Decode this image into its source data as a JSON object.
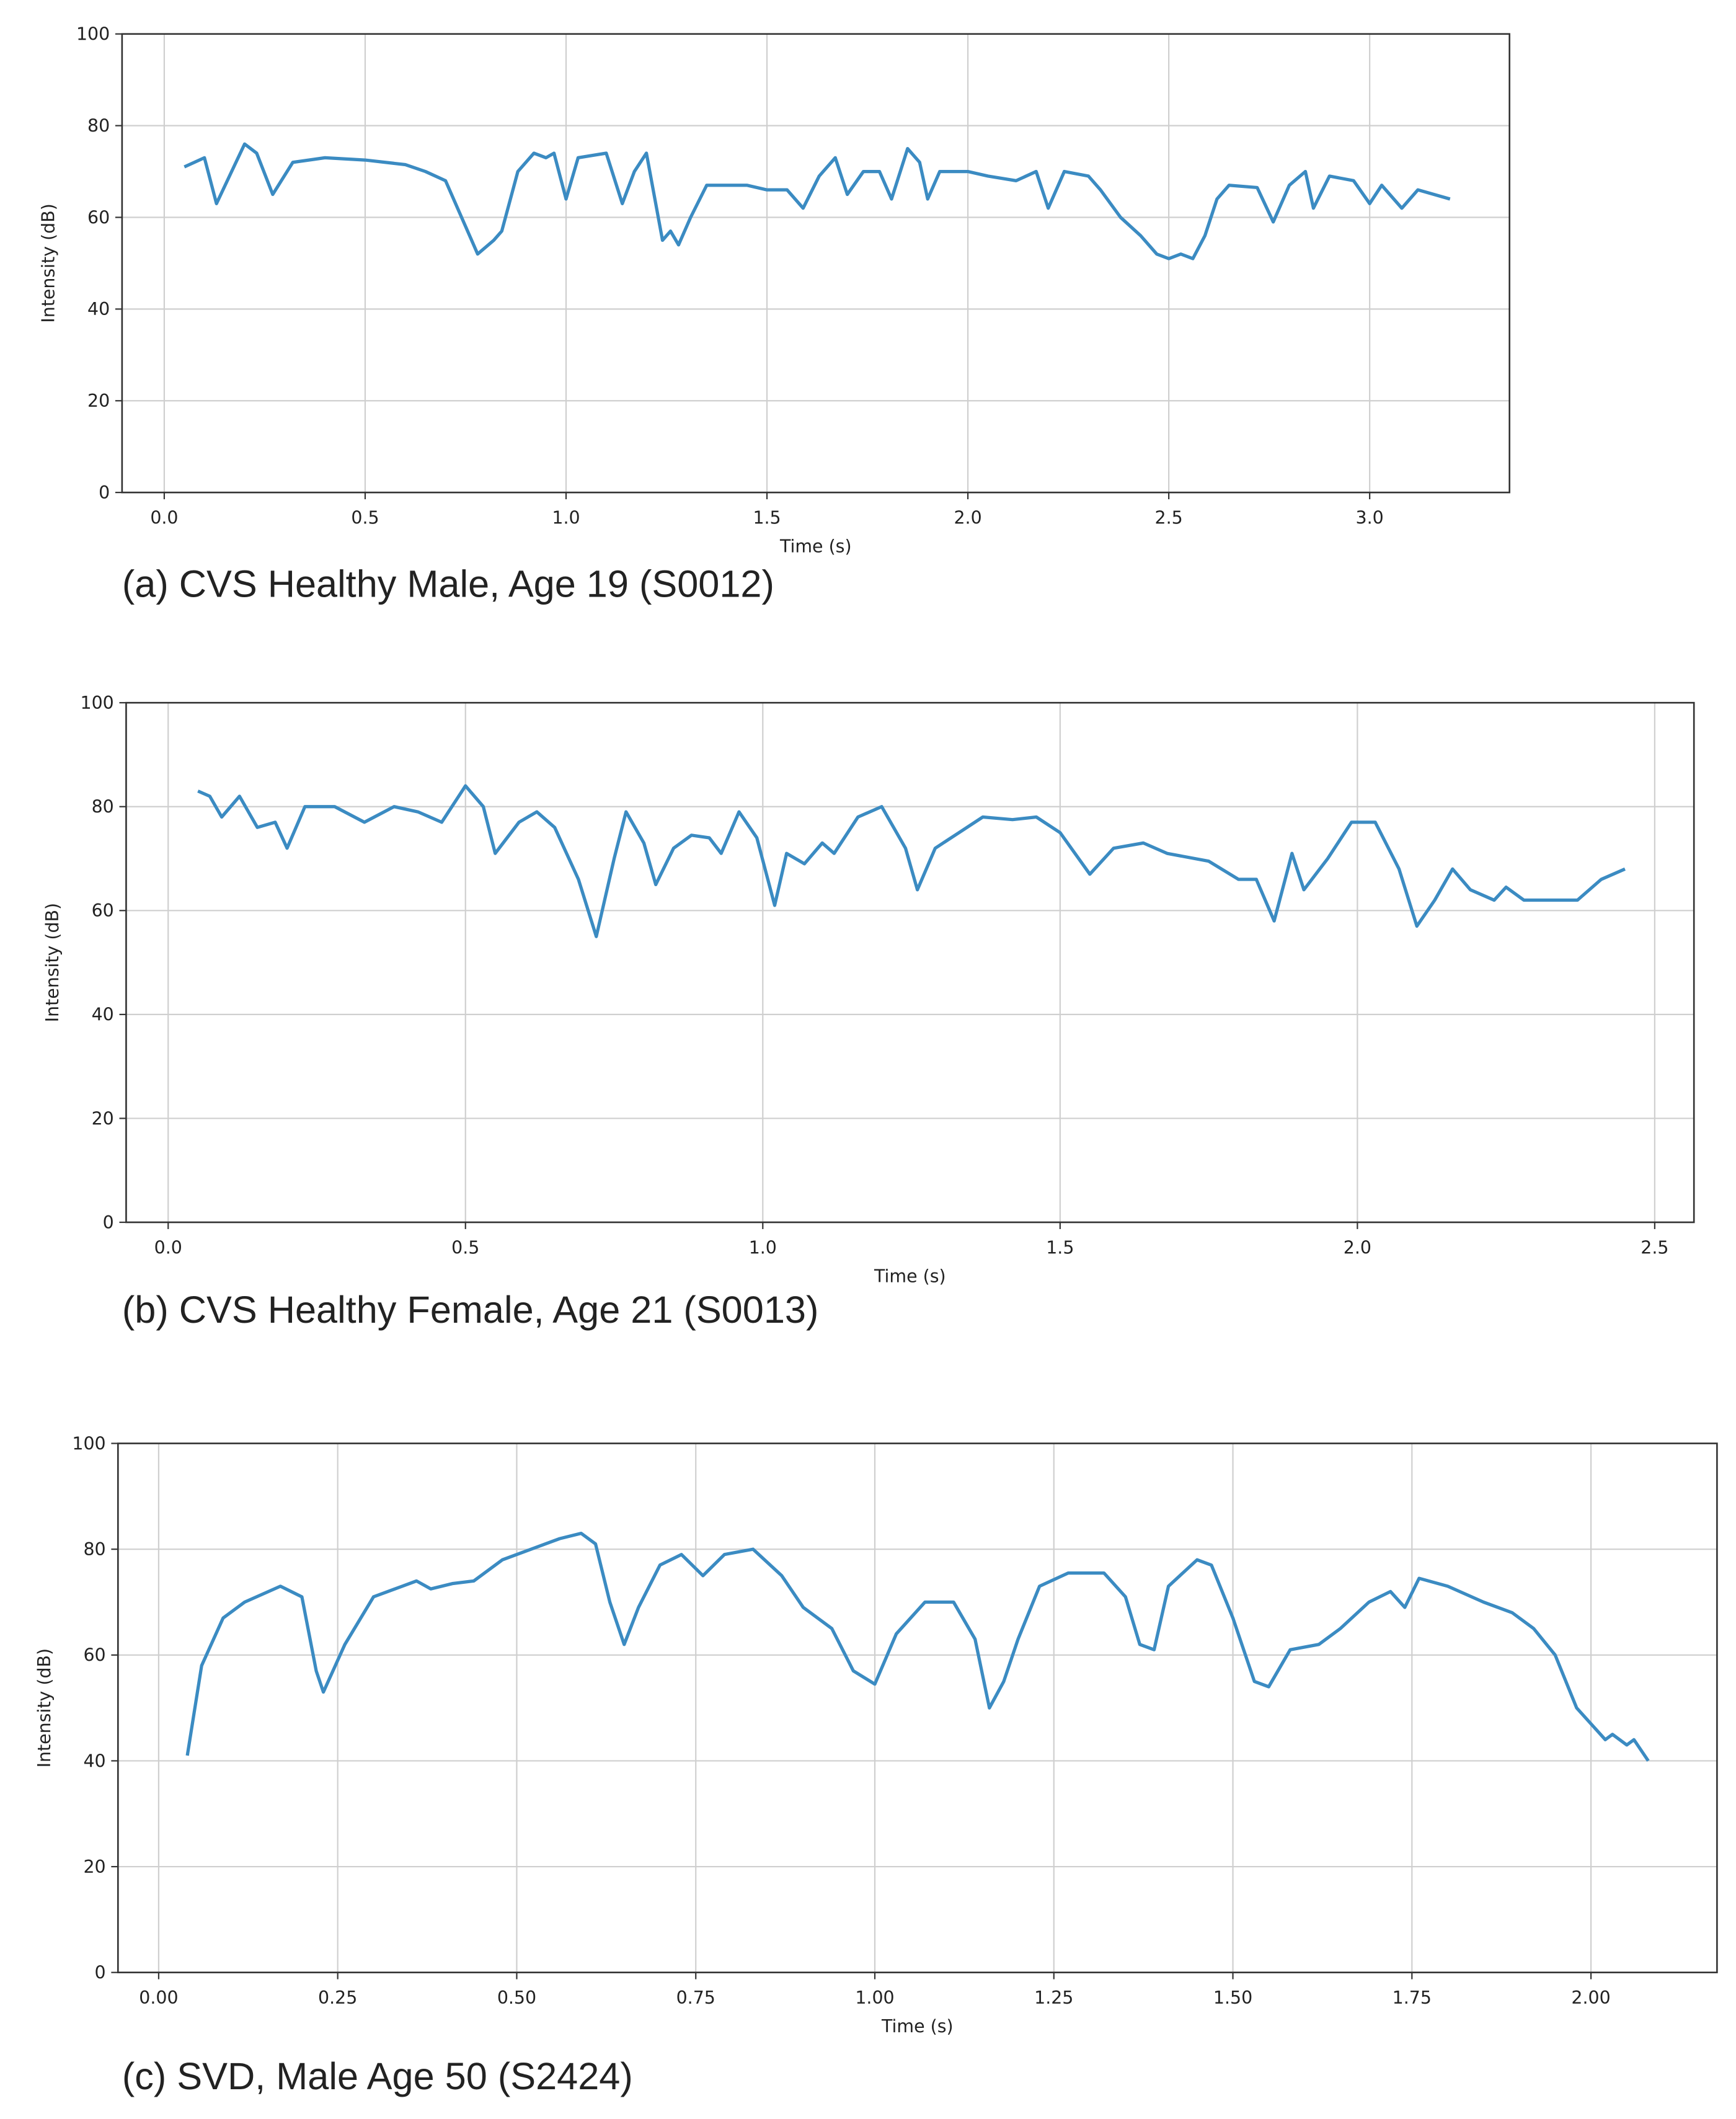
{
  "chart_data": [
    {
      "type": "line",
      "caption": "(a) CVS Healthy Male, Age 19 (S0012)",
      "xlabel": "Time (s)",
      "ylabel": "Intensity (dB)",
      "color": "#3b8bc2",
      "grid": true,
      "xlim": [
        -0.105,
        3.348
      ],
      "ylim": [
        0,
        100
      ],
      "xticks": [
        {
          "value": 0,
          "label": "0.0"
        },
        0.5,
        {
          "value": 1,
          "label": "1.0"
        },
        1.5,
        {
          "value": 2,
          "label": "2.0"
        },
        2.5,
        {
          "value": 3,
          "label": "3.0"
        }
      ],
      "yticks": [
        0,
        20,
        40,
        60,
        80,
        100
      ],
      "x": [
        0.05,
        0.1,
        0.13,
        0.2,
        0.23,
        0.27,
        0.32,
        0.4,
        0.5,
        0.6,
        0.65,
        0.7,
        0.75,
        0.78,
        0.82,
        0.84,
        0.88,
        0.92,
        0.95,
        0.97,
        1.0,
        1.03,
        1.1,
        1.14,
        1.17,
        1.2,
        1.24,
        1.26,
        1.28,
        1.31,
        1.35,
        1.45,
        1.5,
        1.55,
        1.59,
        1.63,
        1.67,
        1.7,
        1.74,
        1.78,
        1.81,
        1.85,
        1.88,
        1.9,
        1.93,
        2.0,
        2.05,
        2.12,
        2.17,
        2.2,
        2.24,
        2.3,
        2.33,
        2.38,
        2.43,
        2.47,
        2.5,
        2.53,
        2.56,
        2.59,
        2.62,
        2.65,
        2.72,
        2.76,
        2.8,
        2.84,
        2.86,
        2.9,
        2.96,
        3.0,
        3.03,
        3.08,
        3.12,
        3.2
      ],
      "values": [
        71,
        73,
        63,
        76,
        74,
        65,
        72,
        73,
        72.5,
        71.5,
        70,
        68,
        58,
        52,
        55,
        57,
        70,
        74,
        73,
        74,
        64,
        73,
        74,
        63,
        70,
        74,
        55,
        57,
        54,
        60,
        67,
        67,
        66,
        66,
        62,
        69,
        73,
        65,
        70,
        70,
        64,
        75,
        72,
        64,
        70,
        70,
        69,
        68,
        70,
        62,
        70,
        69,
        66,
        60,
        56,
        52,
        51,
        52,
        51,
        56,
        64,
        67,
        66.5,
        59,
        67,
        70,
        62,
        69,
        68,
        63,
        67,
        62,
        66,
        64
      ]
    },
    {
      "type": "line",
      "caption": "(b) CVS Healthy Female, Age 21 (S0013)",
      "xlabel": "Time (s)",
      "ylabel": "Intensity (dB)",
      "color": "#3b8bc2",
      "grid": true,
      "xlim": [
        -0.0707,
        2.566
      ],
      "ylim": [
        0,
        100
      ],
      "xticks": [
        {
          "value": 0,
          "label": "0.0"
        },
        0.5,
        {
          "value": 1,
          "label": "1.0"
        },
        1.5,
        {
          "value": 2,
          "label": "2.0"
        },
        2.5
      ],
      "yticks": [
        0,
        20,
        40,
        60,
        80,
        100
      ],
      "x": [
        0.05,
        0.07,
        0.09,
        0.12,
        0.15,
        0.18,
        0.2,
        0.23,
        0.28,
        0.33,
        0.38,
        0.42,
        0.46,
        0.5,
        0.53,
        0.55,
        0.59,
        0.62,
        0.65,
        0.69,
        0.72,
        0.75,
        0.77,
        0.8,
        0.82,
        0.85,
        0.88,
        0.91,
        0.93,
        0.96,
        0.99,
        1.02,
        1.04,
        1.07,
        1.1,
        1.12,
        1.16,
        1.2,
        1.24,
        1.26,
        1.29,
        1.33,
        1.37,
        1.42,
        1.46,
        1.5,
        1.55,
        1.59,
        1.64,
        1.68,
        1.75,
        1.8,
        1.83,
        1.86,
        1.89,
        1.91,
        1.95,
        1.99,
        2.03,
        2.07,
        2.1,
        2.13,
        2.16,
        2.19,
        2.23,
        2.25,
        2.28,
        2.33,
        2.37,
        2.41,
        2.45
      ],
      "values": [
        83,
        82,
        78,
        82,
        76,
        77,
        72,
        80,
        80,
        77,
        80,
        79,
        77,
        84,
        80,
        71,
        77,
        79,
        76,
        66,
        55,
        70,
        79,
        73,
        65,
        72,
        74.5,
        74,
        71,
        79,
        74,
        61,
        71,
        69,
        73,
        71,
        78,
        80,
        72,
        64,
        72,
        75,
        78,
        77.5,
        78,
        75,
        67,
        72,
        73,
        71,
        69.5,
        66,
        66,
        58,
        71,
        64,
        70,
        77,
        77,
        68,
        57,
        62,
        68,
        64,
        62,
        64.5,
        62,
        62,
        62,
        66,
        68
      ]
    },
    {
      "type": "line",
      "caption": "(c) SVD, Male Age 50 (S2424)",
      "xlabel": "Time (s)",
      "ylabel": "Intensity (dB)",
      "color": "#3b8bc2",
      "grid": true,
      "xlim": [
        -0.0568,
        2.176
      ],
      "ylim": [
        0,
        100
      ],
      "xticks": [
        {
          "value": 0,
          "label": "0.00"
        },
        0.25,
        {
          "value": 0.5,
          "label": "0.50"
        },
        0.75,
        {
          "value": 1,
          "label": "1.00"
        },
        1.25,
        {
          "value": 1.5,
          "label": "1.50"
        },
        1.75,
        {
          "value": 2,
          "label": "2.00"
        }
      ],
      "yticks": [
        0,
        20,
        40,
        60,
        80,
        100
      ],
      "x": [
        0.04,
        0.06,
        0.09,
        0.12,
        0.17,
        0.2,
        0.22,
        0.23,
        0.26,
        0.3,
        0.34,
        0.36,
        0.38,
        0.41,
        0.44,
        0.48,
        0.52,
        0.56,
        0.59,
        0.61,
        0.63,
        0.65,
        0.67,
        0.7,
        0.73,
        0.76,
        0.79,
        0.83,
        0.87,
        0.9,
        0.94,
        0.97,
        1.0,
        1.03,
        1.07,
        1.11,
        1.14,
        1.16,
        1.18,
        1.2,
        1.23,
        1.27,
        1.32,
        1.35,
        1.37,
        1.39,
        1.41,
        1.45,
        1.47,
        1.5,
        1.53,
        1.55,
        1.58,
        1.62,
        1.65,
        1.69,
        1.72,
        1.74,
        1.76,
        1.8,
        1.85,
        1.89,
        1.92,
        1.95,
        1.98,
        2.0,
        2.02,
        2.03,
        2.05,
        2.06,
        2.08
      ],
      "values": [
        41,
        58,
        67,
        70,
        73,
        71,
        57,
        53,
        62,
        71,
        73,
        74,
        72.5,
        73.5,
        74,
        78,
        80,
        82,
        83,
        81,
        70,
        62,
        69,
        77,
        79,
        75,
        79,
        80,
        75,
        69,
        65,
        57,
        54.5,
        64,
        70,
        70,
        63,
        50,
        55,
        63,
        73,
        75.5,
        75.5,
        71,
        62,
        61,
        73,
        78,
        77,
        67,
        55,
        54,
        61,
        62,
        65,
        70,
        72,
        69,
        74.5,
        73,
        70,
        68,
        65,
        60,
        50,
        47,
        44,
        45,
        43,
        44,
        40
      ]
    }
  ]
}
